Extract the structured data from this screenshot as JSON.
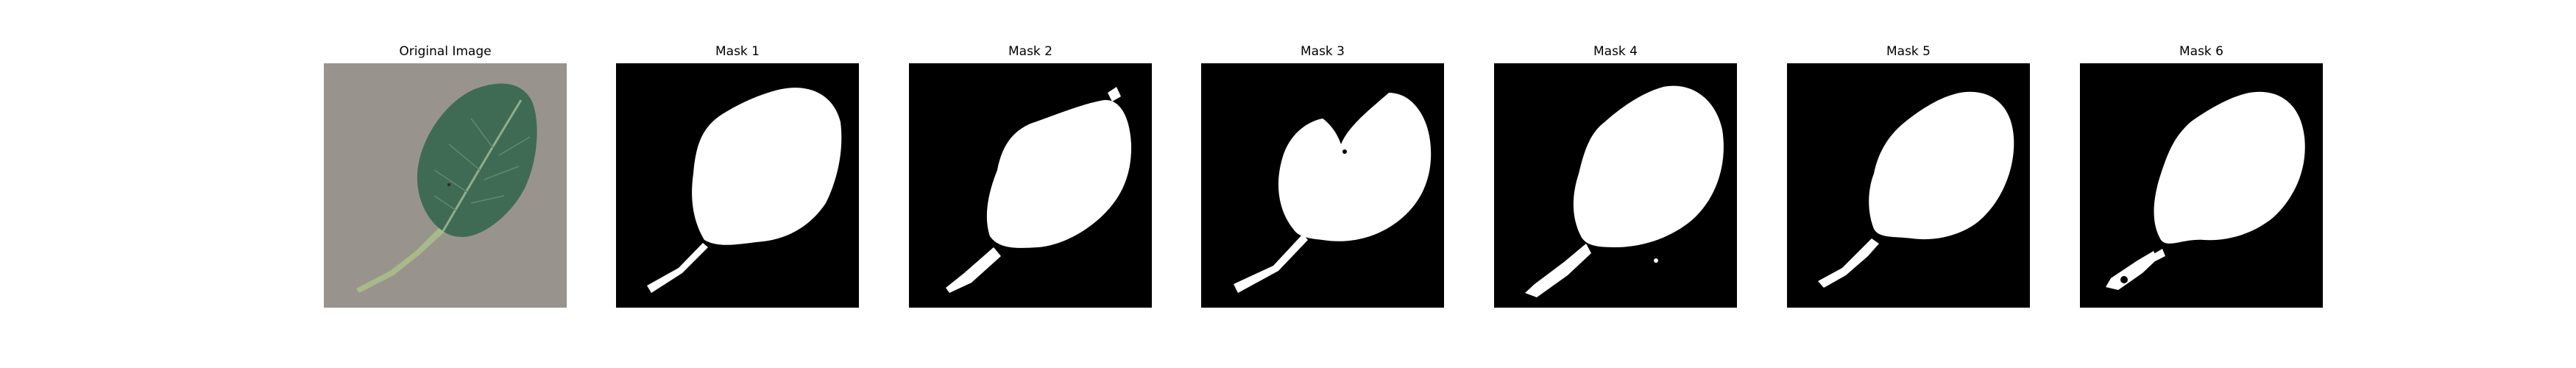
{
  "panels": [
    {
      "title": "Original Image",
      "kind": "photo"
    },
    {
      "title": "Mask 1",
      "kind": "mask"
    },
    {
      "title": "Mask 2",
      "kind": "mask"
    },
    {
      "title": "Mask 3",
      "kind": "mask"
    },
    {
      "title": "Mask 4",
      "kind": "mask"
    },
    {
      "title": "Mask 5",
      "kind": "mask"
    },
    {
      "title": "Mask 6",
      "kind": "mask"
    }
  ],
  "colors": {
    "photo_background": "#9e9792",
    "leaf": "#3f6b55",
    "leaf_vein": "#8fae8c",
    "stem": "#a8b98a",
    "mask_background": "#000000",
    "mask_foreground": "#ffffff"
  }
}
